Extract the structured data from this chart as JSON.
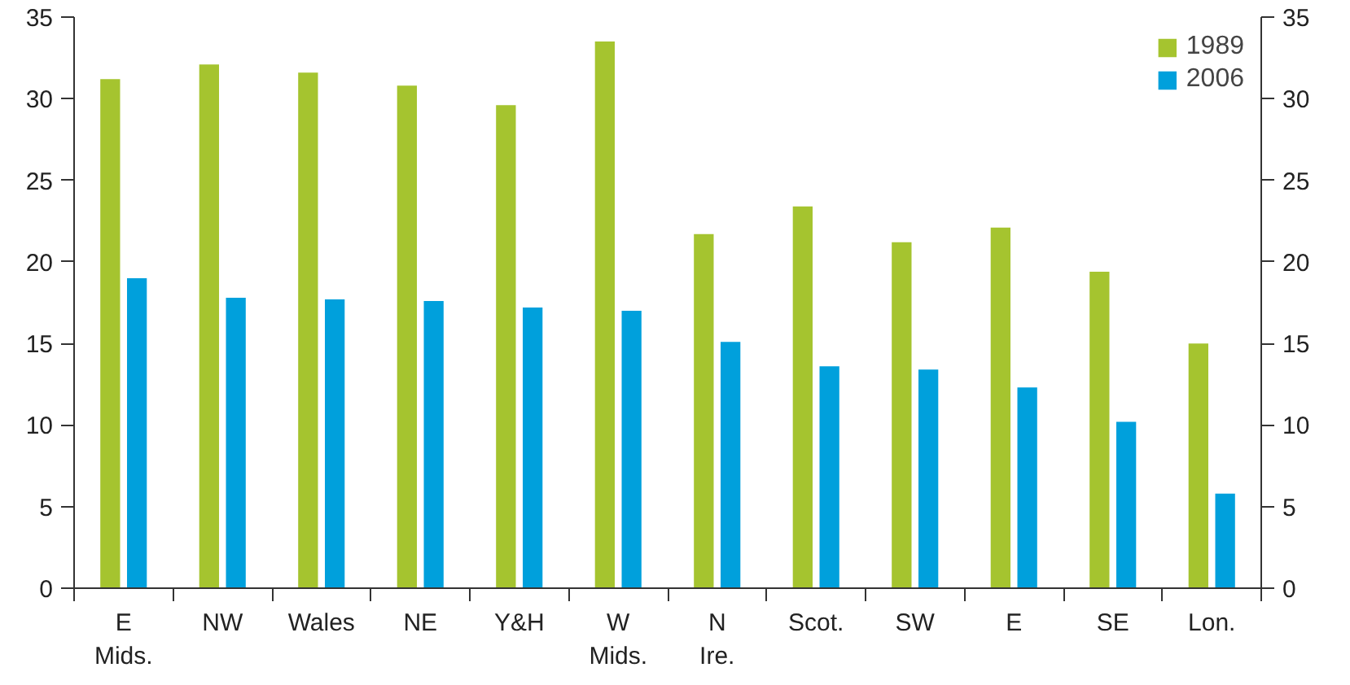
{
  "chart_data": {
    "type": "bar",
    "categories": [
      "E\nMids.",
      "NW",
      "Wales",
      "NE",
      "Y&H",
      "W\nMids.",
      "N\nIre.",
      "Scot.",
      "SW",
      "E",
      "SE",
      "Lon."
    ],
    "series": [
      {
        "name": "1989",
        "color": "#a5c42f",
        "values": [
          31.2,
          32.1,
          31.6,
          30.8,
          29.6,
          33.5,
          21.7,
          23.4,
          21.2,
          22.1,
          19.4,
          15.0
        ]
      },
      {
        "name": "2006",
        "color": "#00a0dc",
        "values": [
          19.0,
          17.8,
          17.7,
          17.6,
          17.2,
          17.0,
          15.1,
          13.6,
          13.4,
          12.3,
          10.2,
          5.8
        ]
      }
    ],
    "ylim": [
      0,
      35
    ],
    "yticks": [
      0,
      5,
      10,
      15,
      20,
      25,
      30,
      35
    ],
    "y2lim": [
      0,
      35
    ],
    "y2ticks": [
      0,
      5,
      10,
      15,
      20,
      25,
      30,
      35
    ],
    "grid": false,
    "legend": "top right"
  }
}
